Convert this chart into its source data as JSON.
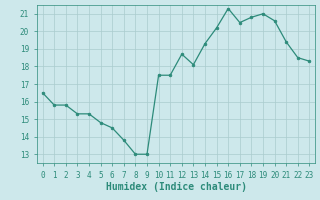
{
  "x_data": [
    0,
    1,
    2,
    3,
    4,
    5,
    6,
    7,
    8,
    9,
    10,
    11,
    12,
    13,
    14,
    15,
    16,
    17,
    18,
    19,
    20,
    21,
    22,
    23
  ],
  "y_data": [
    16.5,
    15.8,
    15.8,
    15.3,
    15.3,
    14.8,
    14.5,
    13.8,
    13.0,
    13.0,
    17.5,
    17.5,
    18.7,
    18.1,
    19.3,
    20.2,
    21.3,
    20.5,
    20.8,
    21.0,
    20.6,
    19.4,
    18.5,
    18.3
  ],
  "line_color": "#2d8b7a",
  "marker_color": "#2d8b7a",
  "bg_color": "#cde8eb",
  "grid_color": "#aaccce",
  "xlabel": "Humidex (Indice chaleur)",
  "ylabel": "",
  "xlim": [
    -0.5,
    23.5
  ],
  "ylim": [
    12.5,
    21.5
  ],
  "yticks": [
    13,
    14,
    15,
    16,
    17,
    18,
    19,
    20,
    21
  ],
  "xticks": [
    0,
    1,
    2,
    3,
    4,
    5,
    6,
    7,
    8,
    9,
    10,
    11,
    12,
    13,
    14,
    15,
    16,
    17,
    18,
    19,
    20,
    21,
    22,
    23
  ],
  "tick_fontsize": 5.5,
  "xlabel_fontsize": 7.0
}
